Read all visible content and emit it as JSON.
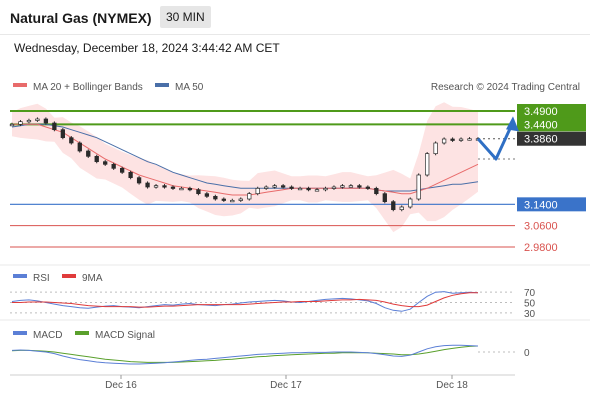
{
  "header": {
    "title": "Natural Gas (NYMEX)",
    "timeframe": "30 MIN",
    "datetime": "Wednesday, December 18, 2024 3:44:42 AM CET"
  },
  "legend": {
    "ma20": "MA 20 + Bollinger Bands",
    "ma50": "MA 50",
    "credit": "Research © 2024 Trading Central",
    "rsi": "RSI",
    "rsi_ma": "9MA",
    "macd": "MACD",
    "macd_signal": "MACD Signal"
  },
  "colors": {
    "price": "#2a2a2a",
    "ma20": "#e86b6b",
    "ma50": "#4a6fa8",
    "bollinger_fill": "#fde3e3",
    "resistance": "#4f9a1a",
    "support": "#3a73c9",
    "target": "#d9534f",
    "arrow": "#2f6fc4",
    "rsi": "#5b7fd6",
    "rsi_ma": "#e03b3b",
    "macd": "#5b7fd6",
    "macd_signal": "#5aa02c"
  },
  "chart_data": [
    {
      "type": "line",
      "panel": "price",
      "ylim": [
        2.95,
        3.52
      ],
      "x_ticks": [
        "Dec 16",
        "Dec 17",
        "Dec 18"
      ],
      "levels": [
        {
          "label": "3.4900",
          "value": 3.49,
          "kind": "resistance"
        },
        {
          "label": "3.4400",
          "value": 3.44,
          "kind": "resistance"
        },
        {
          "label": "3.3860",
          "value": 3.386,
          "kind": "last"
        },
        {
          "label": "3.1400",
          "value": 3.14,
          "kind": "support"
        },
        {
          "label": "3.0600",
          "value": 3.06,
          "kind": "target"
        },
        {
          "label": "2.9800",
          "value": 2.98,
          "kind": "target"
        }
      ],
      "series": [
        {
          "name": "Price",
          "values": [
            3.44,
            3.45,
            3.455,
            3.46,
            3.445,
            3.42,
            3.39,
            3.37,
            3.34,
            3.32,
            3.3,
            3.29,
            3.275,
            3.26,
            3.24,
            3.22,
            3.205,
            3.21,
            3.205,
            3.2,
            3.2,
            3.195,
            3.18,
            3.17,
            3.16,
            3.155,
            3.155,
            3.16,
            3.18,
            3.2,
            3.205,
            3.21,
            3.205,
            3.2,
            3.2,
            3.195,
            3.195,
            3.2,
            3.205,
            3.21,
            3.21,
            3.205,
            3.2,
            3.18,
            3.15,
            3.12,
            3.13,
            3.16,
            3.25,
            3.33,
            3.37,
            3.385,
            3.38,
            3.385,
            3.386,
            3.386
          ]
        },
        {
          "name": "MA 20",
          "values": [
            3.44,
            3.44,
            3.44,
            3.44,
            3.43,
            3.42,
            3.41,
            3.39,
            3.37,
            3.35,
            3.33,
            3.31,
            3.295,
            3.28,
            3.265,
            3.25,
            3.24,
            3.23,
            3.22,
            3.21,
            3.205,
            3.2,
            3.195,
            3.19,
            3.185,
            3.18,
            3.175,
            3.175,
            3.175,
            3.18,
            3.185,
            3.19,
            3.195,
            3.2,
            3.2,
            3.2,
            3.2,
            3.2,
            3.2,
            3.2,
            3.2,
            3.2,
            3.2,
            3.195,
            3.19,
            3.185,
            3.18,
            3.18,
            3.19,
            3.2,
            3.215,
            3.23,
            3.245,
            3.26,
            3.275,
            3.29
          ]
        },
        {
          "name": "MA 50",
          "values": [
            3.43,
            3.435,
            3.44,
            3.44,
            3.44,
            3.435,
            3.43,
            3.42,
            3.41,
            3.4,
            3.39,
            3.375,
            3.36,
            3.345,
            3.33,
            3.315,
            3.3,
            3.29,
            3.275,
            3.26,
            3.25,
            3.24,
            3.23,
            3.22,
            3.215,
            3.21,
            3.205,
            3.2,
            3.2,
            3.2,
            3.2,
            3.2,
            3.2,
            3.2,
            3.2,
            3.2,
            3.2,
            3.2,
            3.2,
            3.2,
            3.2,
            3.2,
            3.2,
            3.195,
            3.19,
            3.19,
            3.19,
            3.19,
            3.195,
            3.2,
            3.205,
            3.21,
            3.215,
            3.215,
            3.22,
            3.225
          ]
        },
        {
          "name": "Projection",
          "values": [
            3.386,
            3.31,
            3.44
          ]
        }
      ]
    },
    {
      "type": "line",
      "panel": "rsi",
      "ylim": [
        20,
        80
      ],
      "y_ticks": [
        70,
        50,
        30
      ],
      "series": [
        {
          "name": "RSI",
          "values": [
            52,
            54,
            55,
            53,
            50,
            47,
            44,
            42,
            40,
            39,
            41,
            43,
            44,
            42,
            41,
            40,
            42,
            44,
            46,
            45,
            47,
            48,
            46,
            45,
            44,
            46,
            47,
            49,
            51,
            52,
            53,
            54,
            53,
            51,
            50,
            52,
            54,
            56,
            57,
            58,
            57,
            55,
            53,
            48,
            40,
            35,
            33,
            37,
            50,
            62,
            70,
            71,
            68,
            69,
            70,
            69
          ]
        },
        {
          "name": "9MA",
          "values": [
            50,
            50,
            51,
            51,
            51,
            50,
            49,
            48,
            46,
            44,
            43,
            42,
            42,
            42,
            42,
            41,
            41,
            42,
            43,
            43,
            44,
            45,
            46,
            46,
            46,
            46,
            46,
            46,
            47,
            48,
            49,
            50,
            51,
            51,
            52,
            52,
            52,
            53,
            54,
            55,
            55,
            56,
            55,
            54,
            51,
            47,
            44,
            42,
            42,
            45,
            52,
            59,
            64,
            67,
            69,
            69
          ]
        }
      ]
    },
    {
      "type": "line",
      "panel": "macd",
      "ylim": [
        -0.05,
        0.03
      ],
      "y_ticks": [
        0
      ],
      "series": [
        {
          "name": "MACD",
          "values": [
            0.004,
            0.005,
            0.004,
            0.002,
            0.0,
            -0.004,
            -0.01,
            -0.015,
            -0.019,
            -0.022,
            -0.025,
            -0.027,
            -0.028,
            -0.029,
            -0.03,
            -0.03,
            -0.029,
            -0.028,
            -0.027,
            -0.025,
            -0.023,
            -0.021,
            -0.019,
            -0.018,
            -0.016,
            -0.014,
            -0.012,
            -0.01,
            -0.008,
            -0.006,
            -0.005,
            -0.004,
            -0.003,
            -0.002,
            -0.002,
            -0.001,
            -0.001,
            -0.001,
            0.0,
            0.0,
            0.0,
            -0.001,
            -0.002,
            -0.004,
            -0.007,
            -0.01,
            -0.011,
            -0.008,
            0.0,
            0.008,
            0.013,
            0.016,
            0.017,
            0.017,
            0.016,
            0.015
          ]
        },
        {
          "name": "MACD Signal",
          "values": [
            0.003,
            0.004,
            0.004,
            0.003,
            0.002,
            0.0,
            -0.003,
            -0.006,
            -0.009,
            -0.012,
            -0.015,
            -0.018,
            -0.02,
            -0.022,
            -0.024,
            -0.025,
            -0.026,
            -0.026,
            -0.026,
            -0.026,
            -0.025,
            -0.024,
            -0.023,
            -0.022,
            -0.021,
            -0.019,
            -0.018,
            -0.016,
            -0.014,
            -0.012,
            -0.011,
            -0.009,
            -0.008,
            -0.007,
            -0.006,
            -0.005,
            -0.004,
            -0.003,
            -0.003,
            -0.002,
            -0.002,
            -0.002,
            -0.002,
            -0.003,
            -0.004,
            -0.005,
            -0.007,
            -0.007,
            -0.005,
            -0.002,
            0.002,
            0.006,
            0.009,
            0.012,
            0.014,
            0.015
          ]
        }
      ]
    }
  ]
}
